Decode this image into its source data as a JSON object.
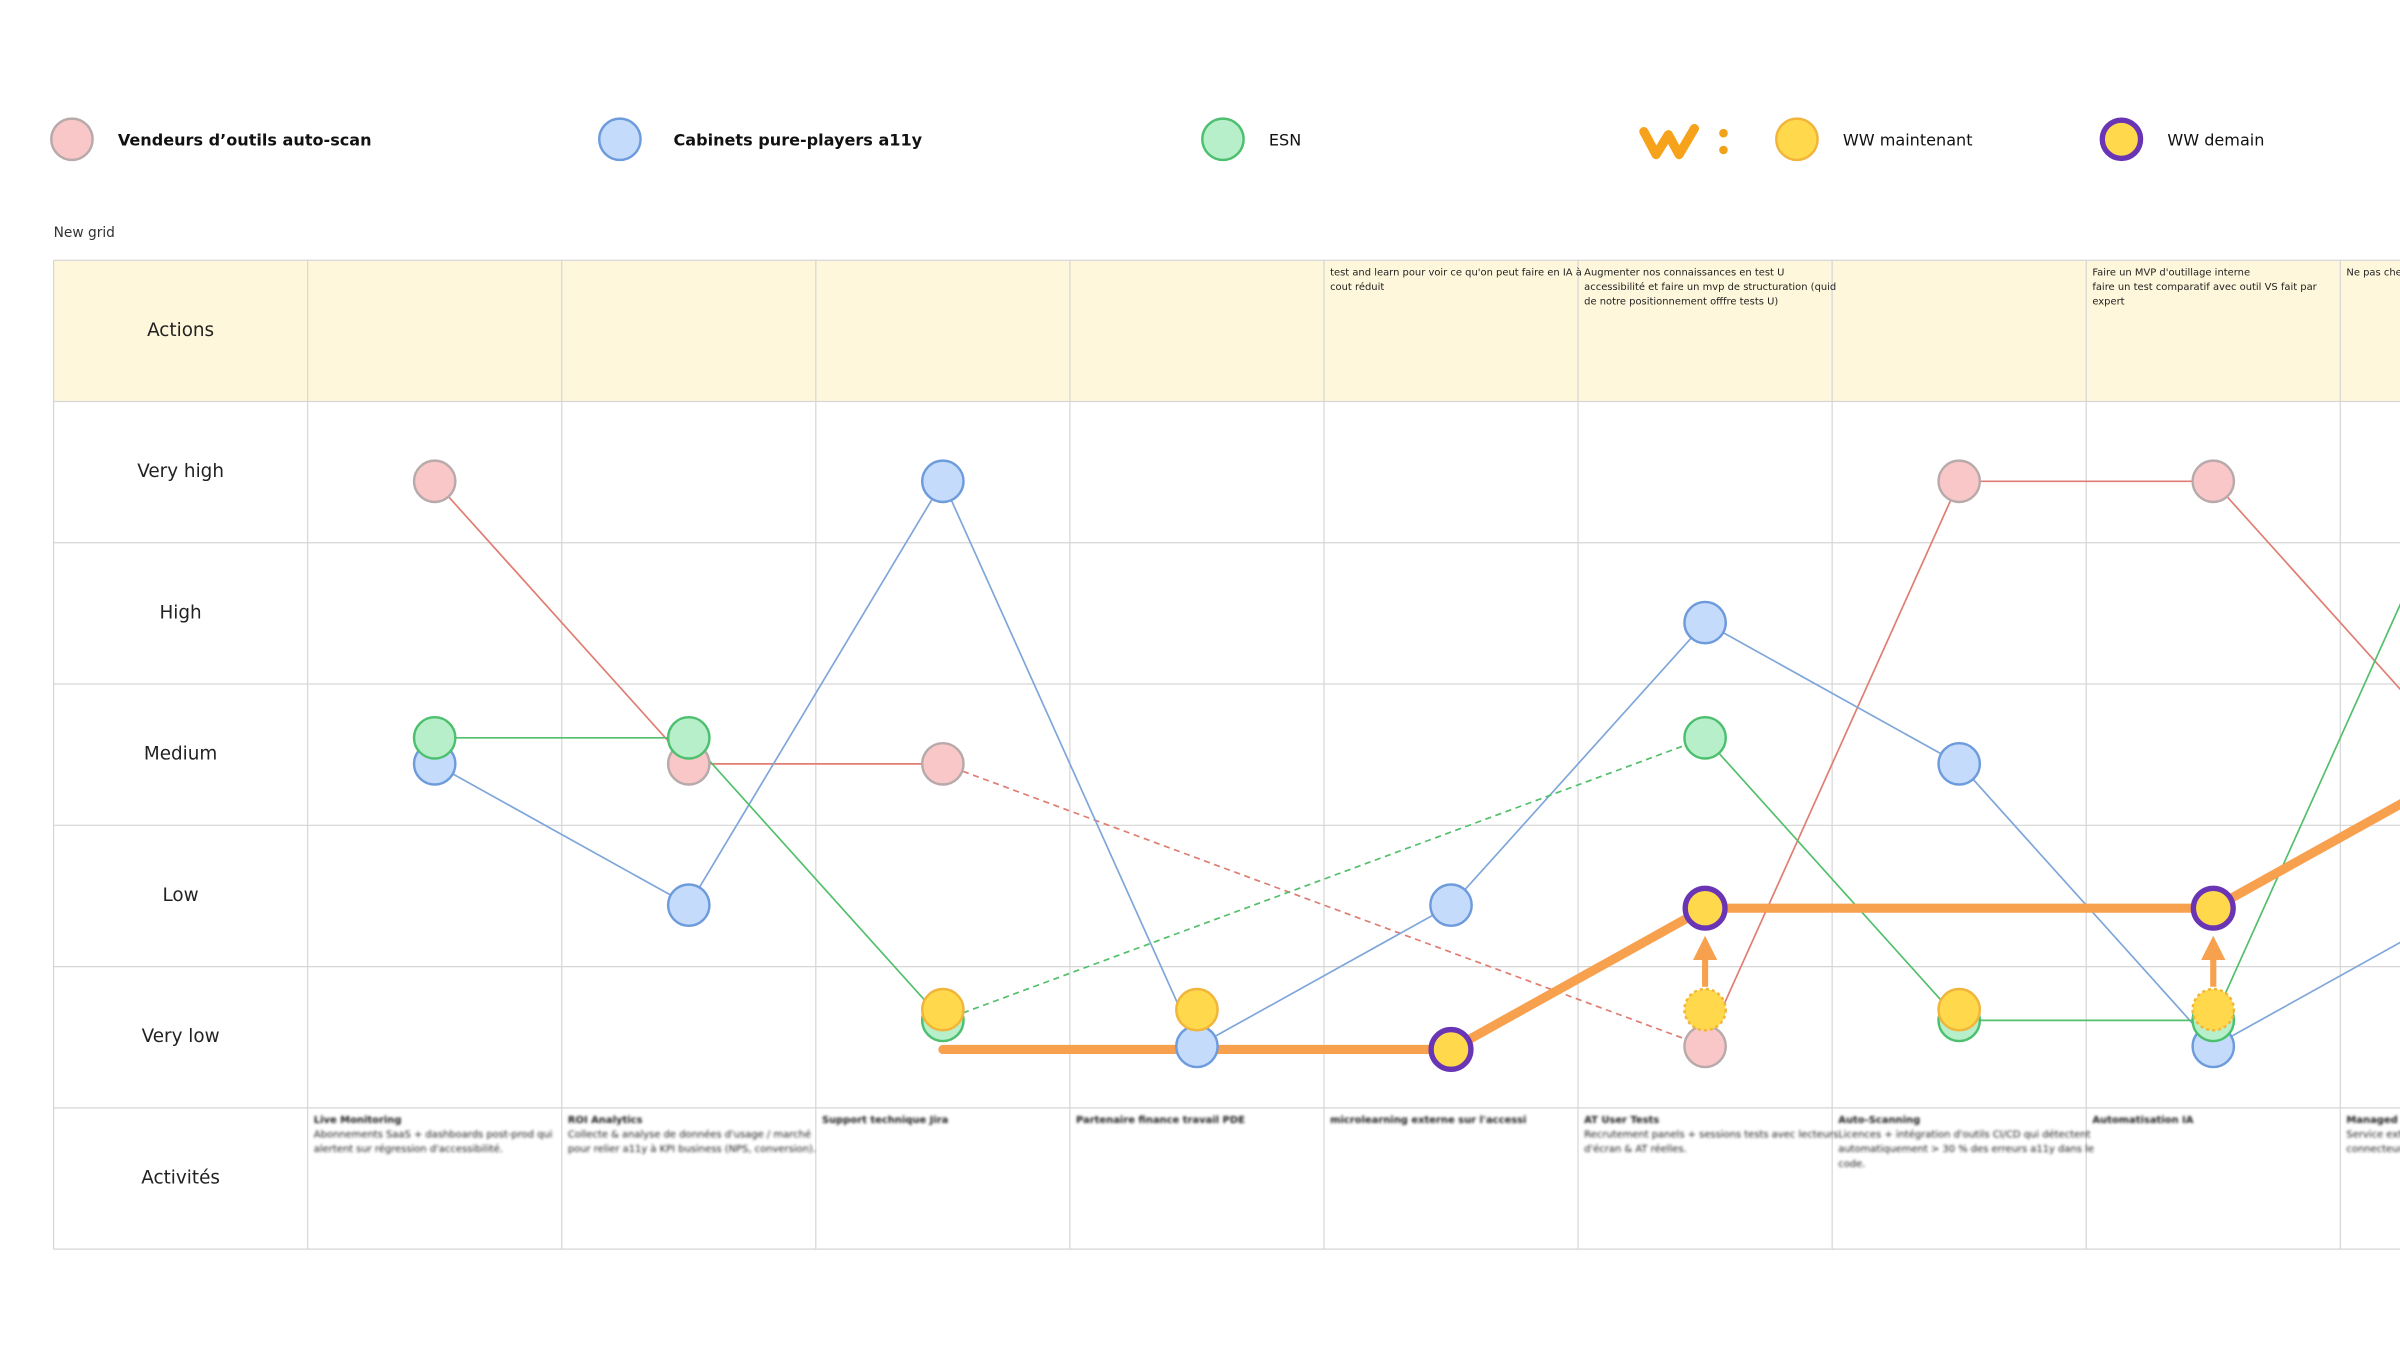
{
  "grid_title": "New grid",
  "rows": [
    "Actions",
    "Very high",
    "High",
    "Medium",
    "Low",
    "Very low",
    "Activités"
  ],
  "columns": [
    {
      "actions": [],
      "activity": {
        "title": "Live Monitoring",
        "lines": [
          "Abonnements SaaS + dashboards post-prod qui",
          "alertent sur régression d'accessibilité."
        ]
      }
    },
    {
      "actions": [],
      "activity": {
        "title": "ROI Analytics",
        "lines": [
          "Collecte & analyse de données d'usage / marché",
          "pour relier a11y à KPI business (NPS, conversion)."
        ]
      }
    },
    {
      "actions": [],
      "activity": {
        "title": "Support technique Jira",
        "lines": []
      }
    },
    {
      "actions": [],
      "activity": {
        "title": "Partenaire finance travail PDE",
        "lines": []
      }
    },
    {
      "actions": [
        "test and learn pour voir ce qu'on peut faire en IA à",
        "cout réduit"
      ],
      "activity": {
        "title": "microlearning externe sur l'accessi",
        "lines": []
      }
    },
    {
      "actions": [
        "Augmenter nos connaissances en test U",
        "accessibilité et faire un mvp de structuration (quid",
        "de notre positionnement offfre tests U)"
      ],
      "activity": {
        "title": "AT User Tests",
        "lines": [
          "Recrutement panels + sessions tests avec lecteurs",
          "d'écran & AT réelles."
        ]
      }
    },
    {
      "actions": [],
      "activity": {
        "title": "Auto-Scanning",
        "lines": [
          "Licences + intégration d'outils CI/CD qui détectent",
          "automatiquement > 30 % des erreurs a11y dans le",
          "code."
        ]
      }
    },
    {
      "actions": [
        "Faire un MVP d'outillage interne",
        "faire un test comparatif avec outil VS fait par",
        "expert"
      ],
      "activity": {
        "title": "Automatisation IA",
        "lines": []
      }
    },
    {
      "actions": [
        "Ne pas cher"
      ],
      "activity": {
        "title": "Managed",
        "lines": [
          "Service ext",
          "connecteurs"
        ]
      }
    }
  ],
  "series": [
    {
      "name": "Vendeurs d’outils auto-scan",
      "fill": "#f9c7c8",
      "stroke": "#b8aaaa",
      "line": "#e07d72",
      "points": [
        {
          "column": 0,
          "level": "Very high"
        },
        {
          "column": 1,
          "level": "Medium"
        },
        {
          "column": 2,
          "level": "Medium"
        },
        {
          "column": 5,
          "level": "Very low"
        },
        {
          "column": 6,
          "level": "Very high"
        },
        {
          "column": 7,
          "level": "Very high"
        },
        {
          "column": 8,
          "level": "Medium"
        }
      ]
    },
    {
      "name": "Cabinets pure-players a11y",
      "fill": "#c5dbfb",
      "stroke": "#6d9bdc",
      "line": "#7ea6da",
      "points": [
        {
          "column": 0,
          "level": "Medium"
        },
        {
          "column": 1,
          "level": "Low"
        },
        {
          "column": 2,
          "level": "Very high"
        },
        {
          "column": 3,
          "level": "Very low"
        },
        {
          "column": 4,
          "level": "Low"
        },
        {
          "column": 5,
          "level": "High"
        },
        {
          "column": 6,
          "level": "Medium"
        },
        {
          "column": 7,
          "level": "Very low"
        },
        {
          "column": 8,
          "level": "Low"
        }
      ]
    },
    {
      "name": "ESN",
      "fill": "#b7efca",
      "stroke": "#4cc06e",
      "line": "#52bf6b",
      "points": [
        {
          "column": 0,
          "level": "Medium"
        },
        {
          "column": 1,
          "level": "Medium"
        },
        {
          "column": 2,
          "level": "Very low"
        },
        {
          "column": 5,
          "level": "Medium"
        },
        {
          "column": 6,
          "level": "Very low"
        },
        {
          "column": 7,
          "level": "Very low"
        },
        {
          "column": 8,
          "level": "Very high"
        }
      ]
    },
    {
      "name": "WW maintenant",
      "fill": "#ffd84b",
      "stroke": "#f1b53c",
      "line": null,
      "points": [
        {
          "column": 2,
          "level": "Very low"
        },
        {
          "column": 3,
          "level": "Very low"
        },
        {
          "column": 5,
          "level": "Very low"
        },
        {
          "column": 6,
          "level": "Very low"
        },
        {
          "column": 7,
          "level": "Very low"
        }
      ]
    },
    {
      "name": "WW demain",
      "fill": "#ffd84b",
      "stroke": "#6a35b5",
      "line": null,
      "points": [
        {
          "column": 4,
          "level": "Very low"
        },
        {
          "column": 5,
          "level": "Low"
        },
        {
          "column": 7,
          "level": "Low"
        }
      ]
    }
  ],
  "trajectory": {
    "color": "#f7a14f",
    "points": [
      {
        "column": 2,
        "level": "Very low"
      },
      {
        "column": 3,
        "level": "Very low"
      },
      {
        "column": 4,
        "level": "Very low"
      },
      {
        "column": 5,
        "level": "Low"
      },
      {
        "column": 7,
        "level": "Low"
      },
      {
        "column": 8,
        "level": "Medium"
      }
    ]
  }
}
